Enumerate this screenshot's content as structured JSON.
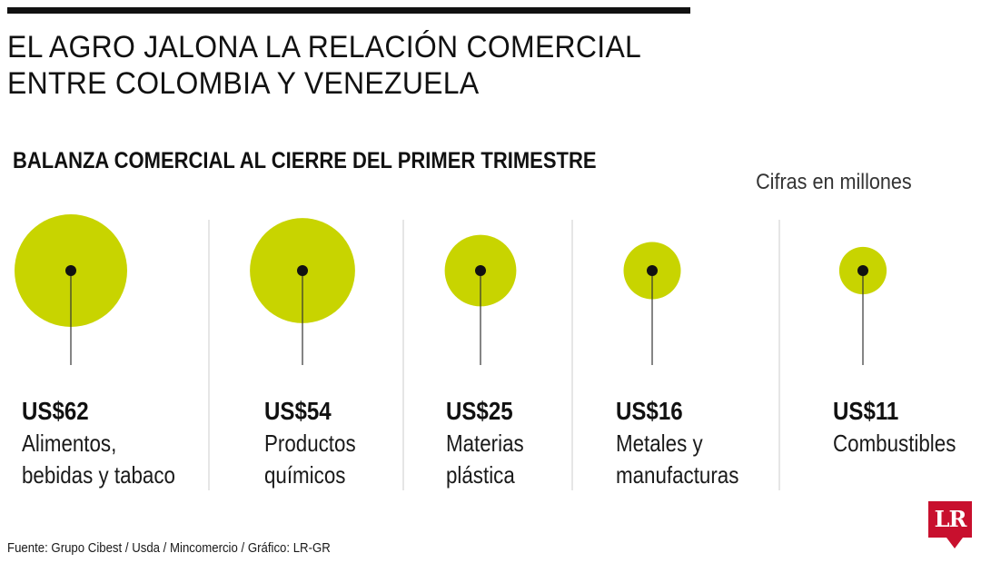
{
  "header": {
    "title_line1": "EL AGRO JALONA LA RELACIÓN COMERCIAL",
    "title_line2": "ENTRE COLOMBIA Y VENEZUELA"
  },
  "footer": {
    "source": "Fuente: Grupo Cibest / Usda / Mincomercio / Gráfico: LR-GR",
    "logo_text": "LR"
  },
  "colors": {
    "bubble": "#c8d400",
    "dot": "#111111",
    "separator": "#cccccc",
    "brand": "#c8102e"
  },
  "chart_data": {
    "type": "bubble",
    "title": "BALANZA COMERCIAL AL CIERRE DEL PRIMER TRIMESTRE",
    "units_note": "Cifras en millones",
    "categories": [
      [
        "Alimentos,",
        "bebidas y tabaco"
      ],
      [
        "Productos",
        "químicos"
      ],
      [
        "Materias",
        "plástica"
      ],
      [
        "Metales y",
        "manufacturas"
      ],
      [
        "Combustibles"
      ]
    ],
    "values": [
      62,
      54,
      25,
      16,
      11
    ],
    "value_labels": [
      "US$62",
      "US$54",
      "US$25",
      "US$16",
      "US$11"
    ]
  }
}
